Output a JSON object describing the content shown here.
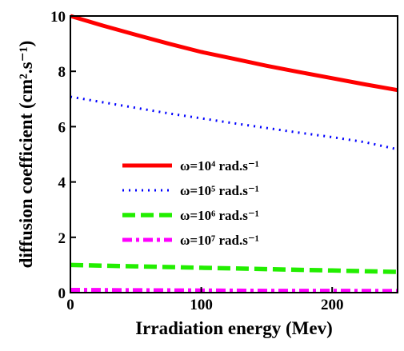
{
  "chart_data": {
    "type": "line",
    "xlabel": "Irradiation energy (Mev)",
    "ylabel": "diffusion coefficient (cm².s⁻¹)",
    "xlim": [
      0,
      250
    ],
    "ylim": [
      0,
      10
    ],
    "xticks": [
      0,
      100,
      200
    ],
    "yticks": [
      0,
      2,
      4,
      6,
      8,
      10
    ],
    "grid": false,
    "legend_position": "center-left",
    "series": [
      {
        "name": "ω=10⁴ rad.s⁻¹",
        "color": "#ff0000",
        "style": "solid",
        "x": [
          0,
          25,
          50,
          75,
          100,
          125,
          150,
          175,
          200,
          225,
          250
        ],
        "y": [
          10.0,
          9.65,
          9.32,
          9.0,
          8.7,
          8.45,
          8.2,
          7.97,
          7.75,
          7.53,
          7.32
        ]
      },
      {
        "name": "ω=10⁵ rad.s⁻¹",
        "color": "#0000ff",
        "style": "dotted",
        "x": [
          0,
          25,
          50,
          75,
          100,
          125,
          150,
          175,
          200,
          225,
          250
        ],
        "y": [
          7.08,
          6.88,
          6.68,
          6.48,
          6.3,
          6.12,
          5.95,
          5.78,
          5.62,
          5.44,
          5.18
        ]
      },
      {
        "name": "ω=10⁶ rad.s⁻¹",
        "color": "#22ee00",
        "style": "dashed",
        "x": [
          0,
          50,
          100,
          150,
          200,
          250
        ],
        "y": [
          1.0,
          0.95,
          0.9,
          0.85,
          0.8,
          0.75
        ]
      },
      {
        "name": "ω=10⁷ rad.s⁻¹",
        "color": "#ff00ff",
        "style": "dashdot",
        "x": [
          0,
          50,
          100,
          150,
          200,
          250
        ],
        "y": [
          0.1,
          0.09,
          0.08,
          0.07,
          0.07,
          0.06
        ]
      }
    ]
  }
}
